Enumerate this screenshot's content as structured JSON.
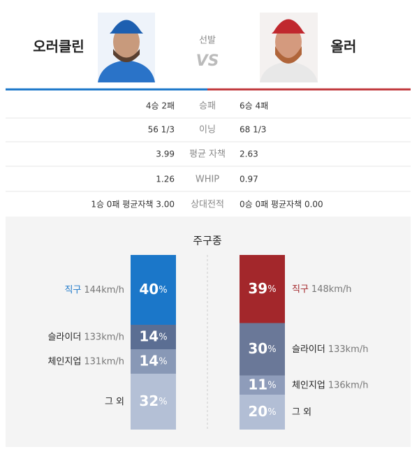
{
  "header": {
    "away": {
      "name": "오러클린"
    },
    "home": {
      "name": "올러"
    },
    "label": "선발",
    "vs": "VS"
  },
  "stats": {
    "rows": [
      {
        "away": "4승 2패",
        "label": "승패",
        "home": "6승 4패"
      },
      {
        "away": "56 1/3",
        "label": "이닝",
        "home": "68 1/3"
      },
      {
        "away": "3.99",
        "label": "평균 자책",
        "home": "2.63"
      },
      {
        "away": "1.26",
        "label": "WHIP",
        "home": "0.97"
      },
      {
        "away": "1승 0패 평균자책 3.00",
        "label": "상대전적",
        "home": "0승 0패 평균자책 0.00"
      }
    ]
  },
  "pitches": {
    "title": "주구종",
    "unit": "%",
    "away": [
      {
        "name": "직구",
        "speed": "144km/h",
        "value": 40,
        "color": "#1b77c9"
      },
      {
        "name": "슬라이더",
        "speed": "133km/h",
        "value": 14,
        "color": "#5b6e93"
      },
      {
        "name": "체인지업",
        "speed": "131km/h",
        "value": 14,
        "color": "#8898b6"
      },
      {
        "name": "그 외",
        "value": 32,
        "color": "#b4c0d6"
      }
    ],
    "home": [
      {
        "name": "직구",
        "speed": "148km/h",
        "value": 39,
        "color": "#a3272b"
      },
      {
        "name": "슬라이더",
        "speed": "133km/h",
        "value": 30,
        "color": "#6a7898"
      },
      {
        "name": "체인지업",
        "speed": "136km/h",
        "value": 11,
        "color": "#8e9cba"
      },
      {
        "name": "그 외",
        "value": 20,
        "color": "#b2bed5"
      }
    ]
  }
}
